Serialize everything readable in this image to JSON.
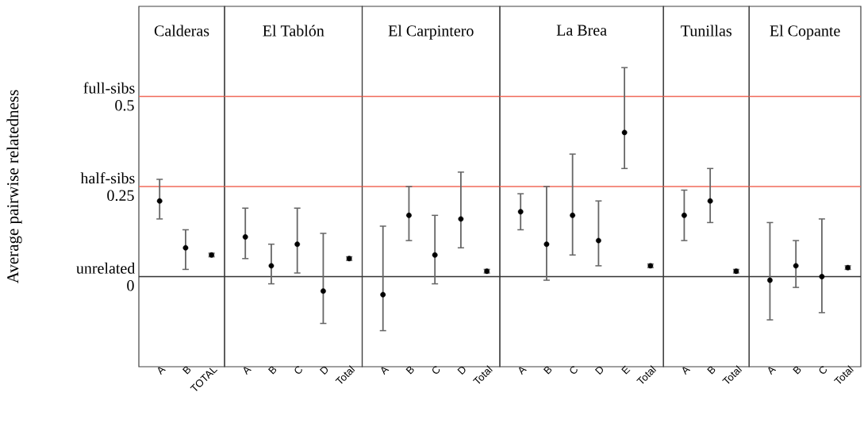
{
  "chart_data": [
    {
      "type": "scatter",
      "title": "Calderas",
      "ylabel": "Average pairwise relatedness",
      "categories": [
        "A",
        "B",
        "TOTAL"
      ],
      "values": [
        0.21,
        0.08,
        0.06
      ],
      "errors": [
        [
          0.16,
          0.27
        ],
        [
          0.02,
          0.13
        ],
        0.005
      ],
      "color": "#000000",
      "ylim": [
        -0.25,
        0.75
      ],
      "yticks": [
        0,
        0.25,
        0.5
      ],
      "ref_lines": [
        {
          "axis": "y",
          "value": 0.5,
          "label": "full-sibs",
          "color": "#f06a5a"
        },
        {
          "axis": "y",
          "value": 0.25,
          "label": "half-sibs",
          "color": "#f06a5a"
        },
        {
          "axis": "y",
          "value": 0,
          "label": "unrelated",
          "color": "#333333"
        }
      ]
    },
    {
      "type": "scatter",
      "title": "El Tablón",
      "categories": [
        "A",
        "B",
        "C",
        "D",
        "Total"
      ],
      "values": [
        0.11,
        0.03,
        0.09,
        -0.04,
        0.05
      ],
      "errors": [
        [
          0.05,
          0.19
        ],
        [
          -0.02,
          0.09
        ],
        [
          0.01,
          0.19
        ],
        [
          -0.13,
          0.12
        ],
        0.005
      ],
      "color": "#000000",
      "ylim": [
        -0.25,
        0.75
      ],
      "tick_labels": "x",
      "ref_lines": [
        {
          "axis": "y",
          "value": 0.5,
          "color": "#f06a5a"
        },
        {
          "axis": "y",
          "value": 0.25,
          "color": "#f06a5a"
        },
        {
          "axis": "y",
          "value": 0,
          "color": "#333333"
        }
      ]
    },
    {
      "type": "scatter",
      "title": "El Carpintero",
      "categories": [
        "A",
        "B",
        "C",
        "D",
        "Total"
      ],
      "values": [
        -0.05,
        0.17,
        0.06,
        0.16,
        0.015
      ],
      "errors": [
        [
          -0.15,
          0.14
        ],
        [
          0.1,
          0.25
        ],
        [
          -0.02,
          0.17
        ],
        [
          0.08,
          0.29
        ],
        0.005
      ],
      "color": "#000000",
      "ylim": [
        -0.25,
        0.75
      ],
      "tick_labels": "x",
      "ref_lines": [
        {
          "axis": "y",
          "value": 0.5,
          "color": "#f06a5a"
        },
        {
          "axis": "y",
          "value": 0.25,
          "color": "#f06a5a"
        },
        {
          "axis": "y",
          "value": 0,
          "color": "#333333"
        }
      ]
    },
    {
      "type": "scatter",
      "title": "La Brea",
      "categories": [
        "A",
        "B",
        "C",
        "D",
        "E",
        "Total"
      ],
      "values": [
        0.18,
        0.09,
        0.17,
        0.1,
        0.4,
        0.03
      ],
      "errors": [
        [
          0.13,
          0.23
        ],
        [
          -0.01,
          0.25
        ],
        [
          0.06,
          0.34
        ],
        [
          0.03,
          0.21
        ],
        [
          0.3,
          0.58
        ],
        0.005
      ],
      "color": "#000000",
      "ylim": [
        -0.25,
        0.75
      ],
      "tick_labels": "x",
      "ref_lines": [
        {
          "axis": "y",
          "value": 0.5,
          "color": "#f06a5a"
        },
        {
          "axis": "y",
          "value": 0.25,
          "color": "#f06a5a"
        },
        {
          "axis": "y",
          "value": 0,
          "color": "#333333"
        }
      ]
    },
    {
      "type": "scatter",
      "title": "Tunillas",
      "categories": [
        "A",
        "B",
        "Total"
      ],
      "values": [
        0.17,
        0.21,
        0.015
      ],
      "errors": [
        [
          0.1,
          0.24
        ],
        [
          0.15,
          0.3
        ],
        0.005
      ],
      "color": "#000000",
      "ylim": [
        -0.25,
        0.75
      ],
      "tick_labels": "x",
      "ref_lines": [
        {
          "axis": "y",
          "value": 0.5,
          "color": "#f06a5a"
        },
        {
          "axis": "y",
          "value": 0.25,
          "color": "#f06a5a"
        },
        {
          "axis": "y",
          "value": 0,
          "color": "#333333"
        }
      ]
    },
    {
      "type": "scatter",
      "title": "El Copante",
      "categories": [
        "A",
        "B",
        "C",
        "Total"
      ],
      "values": [
        -0.01,
        0.03,
        0.0,
        0.025
      ],
      "errors": [
        [
          -0.12,
          0.15
        ],
        [
          -0.03,
          0.1
        ],
        [
          -0.1,
          0.16
        ],
        0.005
      ],
      "color": "#000000",
      "ylim": [
        -0.25,
        0.75
      ],
      "tick_labels": "x",
      "ref_lines": [
        {
          "axis": "y",
          "value": 0.5,
          "color": "#f06a5a"
        },
        {
          "axis": "y",
          "value": 0.25,
          "color": "#f06a5a"
        },
        {
          "axis": "y",
          "value": 0,
          "color": "#333333"
        }
      ]
    }
  ]
}
